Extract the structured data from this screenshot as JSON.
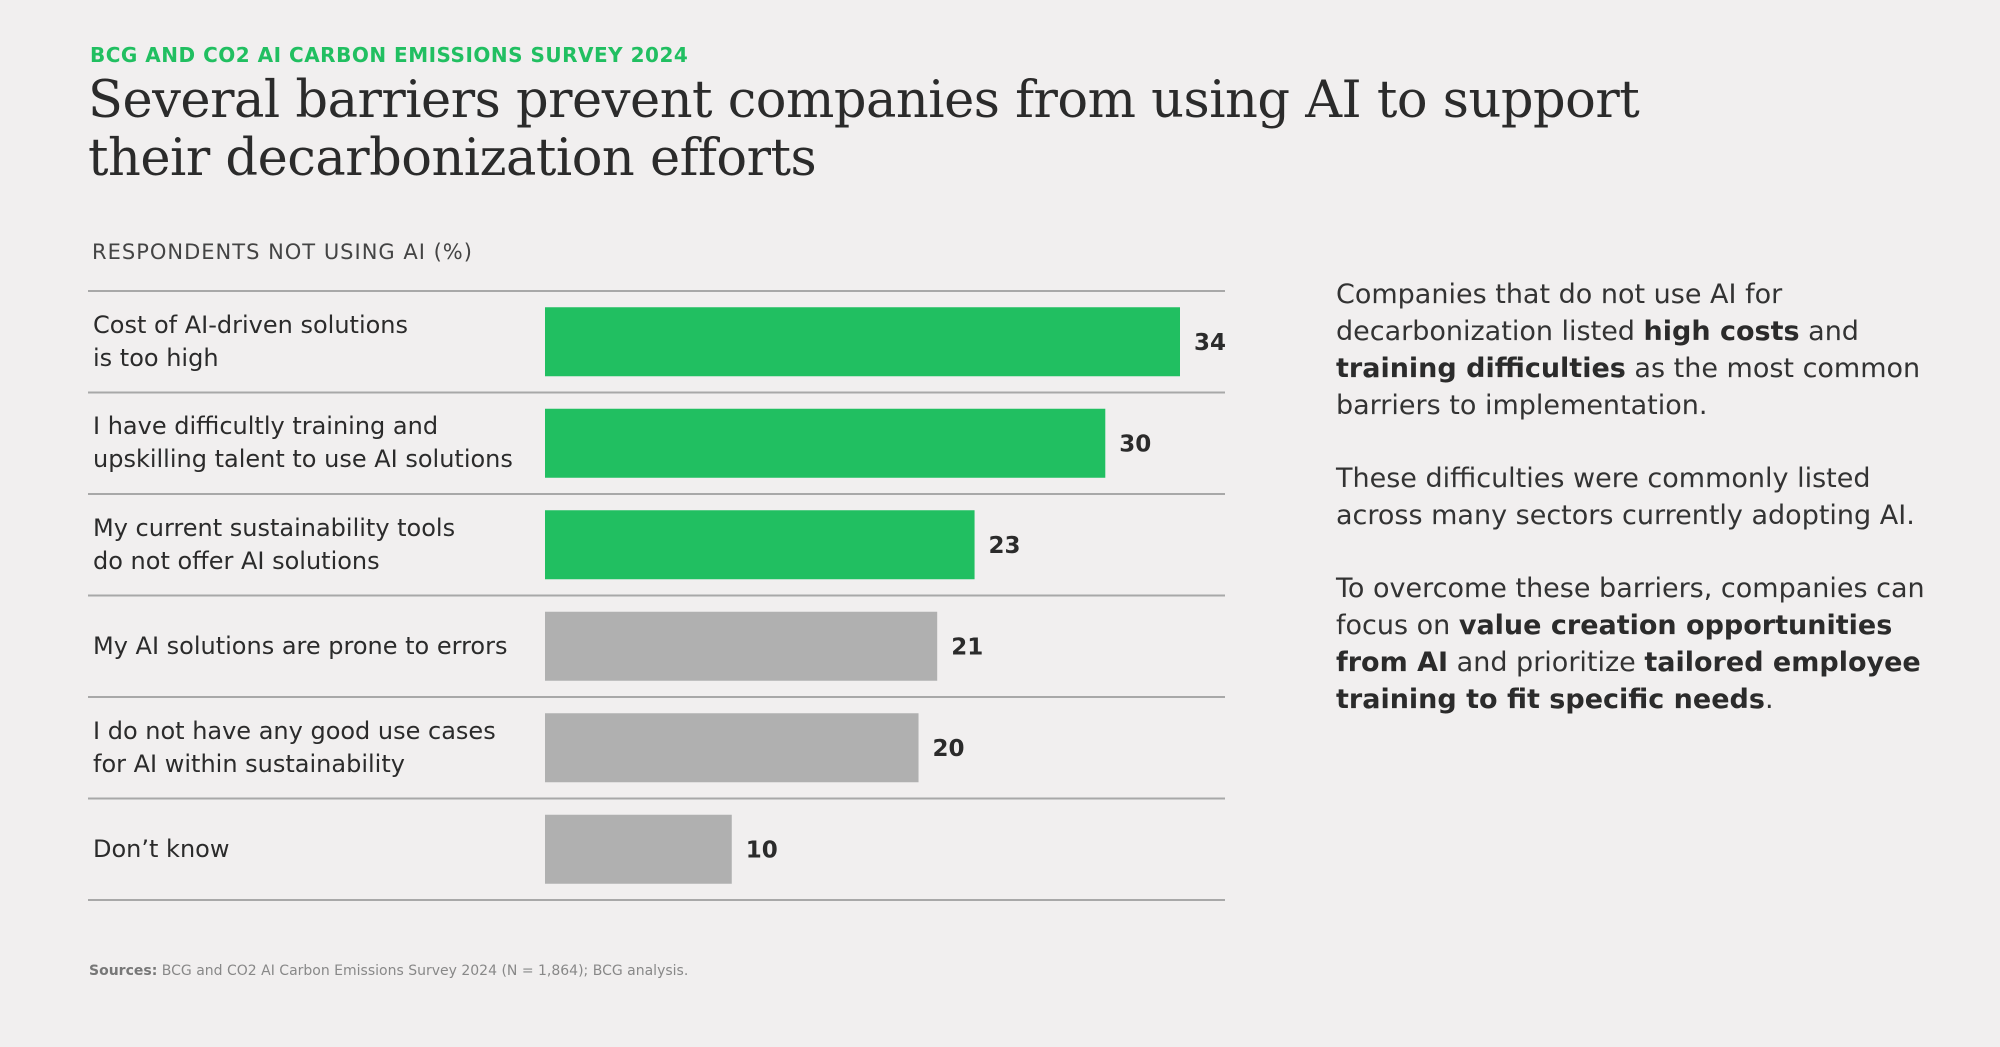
{
  "eyebrow": "BCG AND CO2 AI CARBON EMISSIONS SURVEY 2024",
  "headline": "Several barriers prevent companies from using AI to support their decarbonization efforts",
  "chart_data": {
    "type": "bar",
    "orientation": "horizontal",
    "title": "RESPONDENTS NOT USING AI (%)",
    "categories": [
      "Cost of AI-driven solutions\nis too high",
      "I have difficultly training and\nupskilling talent to use AI solutions",
      "My current sustainability tools\ndo not offer AI solutions",
      "My AI solutions are prone to errors",
      "I do not have any good use cases\nfor AI within sustainability",
      "Don’t know"
    ],
    "values": [
      34,
      30,
      23,
      21,
      20,
      10
    ],
    "highlighted": [
      true,
      true,
      true,
      false,
      false,
      false
    ],
    "colors": {
      "highlight": "#21bf61",
      "other": "#b0b0b0",
      "divider": "#a8a8a8",
      "value_label": "#2b2b2b"
    },
    "xlim": [
      0,
      34
    ],
    "grid": false,
    "legend": "none"
  },
  "side_text": {
    "p1": {
      "part1": "Companies that do not use AI for decarbonization listed ",
      "bold1": "high costs",
      "part2": " and ",
      "bold2": "training difficulties",
      "part3": " as the most common barriers to implementation."
    },
    "p2": "These difficulties were commonly listed across many sectors currently adopting AI.",
    "p3": {
      "part1": "To overcome these barriers, companies can focus on ",
      "bold1": "value creation opportunities from AI",
      "part2": " and prioritize ",
      "bold2": "tailored employee training to fit specific needs",
      "part3": "."
    }
  },
  "sources": {
    "label": "Sources:",
    "text": " BCG and CO2 AI Carbon Emissions Survey 2024 (N = 1,864); BCG analysis."
  }
}
